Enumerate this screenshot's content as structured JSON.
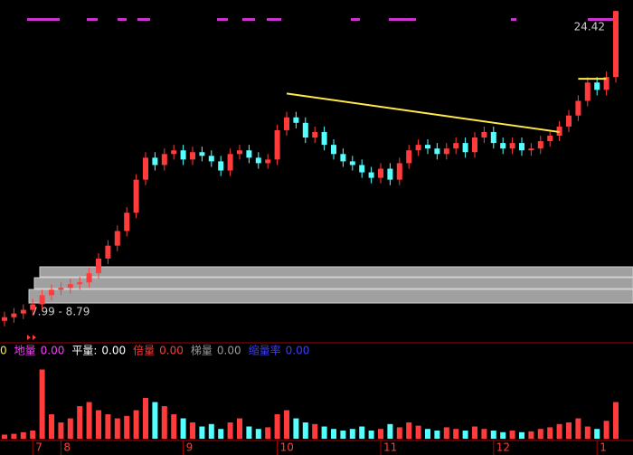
{
  "chart_data": [
    {
      "type": "candlestick",
      "open": [
        7.5,
        7.7,
        7.9,
        8.1,
        8.4,
        8.9,
        9.2,
        9.3,
        9.5,
        9.6,
        10.1,
        10.9,
        11.6,
        12.4,
        13.4,
        15.2,
        16.4,
        16.0,
        16.6,
        16.8,
        16.3,
        16.7,
        16.5,
        16.2,
        15.7,
        16.6,
        16.8,
        16.4,
        16.1,
        16.3,
        17.9,
        18.6,
        18.3,
        17.5,
        17.8,
        17.1,
        16.6,
        16.2,
        16.0,
        15.6,
        15.3,
        15.8,
        15.2,
        16.1,
        16.8,
        17.1,
        16.9,
        16.6,
        16.9,
        17.2,
        16.7,
        17.5,
        17.8,
        17.2,
        16.9,
        17.2,
        16.8,
        16.9,
        17.3,
        17.6,
        18.1,
        18.7,
        19.5,
        20.5,
        20.1,
        20.8
      ],
      "high": [
        8.0,
        8.2,
        8.4,
        8.7,
        9.2,
        9.5,
        9.6,
        9.8,
        9.9,
        10.4,
        11.2,
        11.9,
        12.7,
        13.7,
        15.5,
        16.7,
        16.7,
        16.9,
        17.1,
        17.1,
        17.0,
        17.0,
        16.8,
        16.5,
        16.9,
        17.1,
        17.1,
        16.7,
        16.6,
        18.2,
        18.9,
        18.9,
        18.6,
        18.1,
        18.1,
        17.4,
        16.9,
        16.5,
        16.3,
        15.9,
        16.1,
        16.1,
        16.4,
        17.1,
        17.4,
        17.4,
        17.2,
        17.2,
        17.5,
        17.5,
        17.8,
        18.1,
        18.1,
        17.5,
        17.5,
        17.5,
        17.2,
        17.6,
        17.9,
        18.4,
        19.0,
        19.8,
        20.8,
        20.8,
        21.1,
        24.42
      ],
      "low": [
        7.2,
        7.4,
        7.6,
        7.8,
        8.1,
        8.6,
        8.9,
        9.0,
        9.2,
        9.3,
        9.8,
        10.6,
        11.3,
        12.1,
        13.1,
        14.9,
        15.7,
        15.7,
        16.3,
        16.0,
        16.0,
        16.2,
        15.9,
        15.4,
        15.4,
        16.3,
        16.1,
        15.8,
        15.8,
        16.0,
        17.6,
        18.0,
        17.2,
        17.2,
        16.8,
        16.3,
        15.9,
        15.7,
        15.3,
        15.0,
        15.0,
        14.9,
        14.9,
        15.8,
        16.5,
        16.6,
        16.3,
        16.3,
        16.6,
        16.4,
        16.4,
        17.2,
        16.9,
        16.6,
        16.6,
        16.5,
        16.5,
        16.6,
        17.0,
        17.3,
        17.8,
        18.4,
        19.2,
        19.8,
        19.8,
        20.5
      ],
      "close": [
        7.7,
        7.9,
        8.1,
        8.4,
        8.9,
        9.2,
        9.3,
        9.5,
        9.6,
        10.1,
        10.9,
        11.6,
        12.4,
        13.4,
        15.2,
        16.4,
        16.0,
        16.6,
        16.8,
        16.3,
        16.7,
        16.5,
        16.2,
        15.7,
        16.6,
        16.8,
        16.4,
        16.1,
        16.3,
        17.9,
        18.6,
        18.3,
        17.5,
        17.8,
        17.1,
        16.6,
        16.2,
        16.0,
        15.6,
        15.3,
        15.8,
        15.2,
        16.1,
        16.8,
        17.1,
        16.9,
        16.6,
        16.9,
        17.2,
        16.7,
        17.5,
        17.8,
        17.2,
        16.9,
        17.2,
        16.8,
        16.9,
        17.3,
        17.6,
        18.1,
        18.7,
        19.5,
        20.5,
        20.1,
        20.8,
        24.4
      ],
      "ylim": [
        6.5,
        25
      ],
      "up_color": "#ff3b3b",
      "down_color": "#54ffff",
      "trendlines": [
        {
          "start": 30,
          "end": 59,
          "start_value": 19.9,
          "end_value": 17.8,
          "color": "#ffe84a"
        },
        {
          "start": 61,
          "end": 64,
          "start_value": 20.7,
          "end_value": 20.7,
          "color": "#ffe84a"
        }
      ],
      "price_band_label": "7.99 - 8.79"
    },
    {
      "type": "volume",
      "values": [
        5,
        6,
        8,
        10,
        85,
        30,
        20,
        25,
        40,
        45,
        35,
        30,
        25,
        28,
        35,
        50,
        45,
        40,
        30,
        25,
        20,
        15,
        18,
        12,
        20,
        25,
        15,
        12,
        14,
        30,
        35,
        25,
        20,
        18,
        15,
        12,
        10,
        12,
        15,
        10,
        12,
        18,
        14,
        20,
        16,
        12,
        10,
        14,
        12,
        10,
        15,
        12,
        10,
        8,
        10,
        8,
        9,
        12,
        14,
        18,
        20,
        25,
        15,
        12,
        22,
        45
      ],
      "ylim": [
        0,
        100
      ],
      "prefix": "0",
      "indicators": [
        {
          "name": "地量",
          "value": "0.00",
          "color": "#ff3cff"
        },
        {
          "name": "平量:",
          "value": "0.00",
          "color": "#ffffff"
        },
        {
          "name": "倍量",
          "value": "0.00",
          "color": "#ff3b3b"
        },
        {
          "name": "梯量",
          "value": "0.00",
          "color": "#9a9a9a"
        },
        {
          "name": "缩量率",
          "value": "0.00",
          "color": "#3c3cff"
        }
      ],
      "month_ticks": [
        {
          "value": 3,
          "label": "7"
        },
        {
          "value": 6,
          "label": "8"
        },
        {
          "value": 19,
          "label": "9"
        },
        {
          "value": 29,
          "label": "10"
        },
        {
          "value": 40,
          "label": "11"
        },
        {
          "value": 52,
          "label": "12"
        },
        {
          "value": 63,
          "label": "1"
        }
      ]
    }
  ]
}
